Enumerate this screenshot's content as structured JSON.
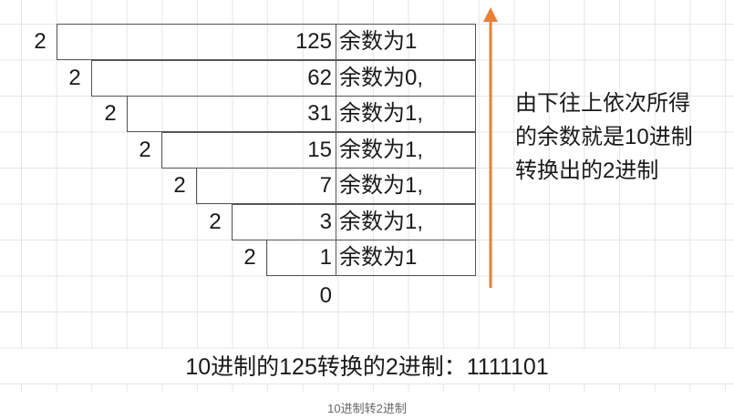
{
  "rows": [
    {
      "divisor": "2",
      "quotient": "125",
      "remainder": "余数为1"
    },
    {
      "divisor": "2",
      "quotient": "62",
      "remainder": "余数为0,"
    },
    {
      "divisor": "2",
      "quotient": "31",
      "remainder": "余数为1,"
    },
    {
      "divisor": "2",
      "quotient": "15",
      "remainder": "余数为1,"
    },
    {
      "divisor": "2",
      "quotient": "7",
      "remainder": "余数为1,"
    },
    {
      "divisor": "2",
      "quotient": "3",
      "remainder": "余数为1,"
    },
    {
      "divisor": "2",
      "quotient": "1",
      "remainder": "余数为1"
    }
  ],
  "final_quotient": "0",
  "note": "由下往上依次所得的余数就是10进制转换出的2进制",
  "result": "10进制的125转换的2进制：1111101",
  "caption": "10进制转2进制",
  "colors": {
    "arrow": "#ed7d31",
    "box_border": "#555555",
    "grid": "#e6e6e6"
  }
}
